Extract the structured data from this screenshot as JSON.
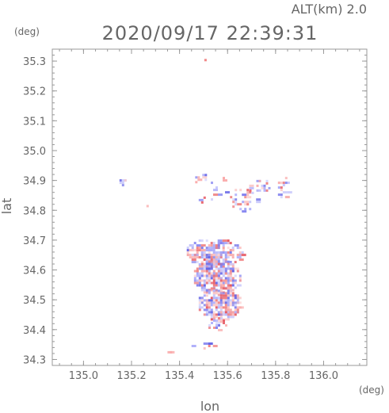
{
  "header": {
    "altitude_label": "ALT(km) 2.0",
    "datetime": "2020/09/17 22:39:31"
  },
  "chart_data": {
    "type": "heatmap",
    "title": "2020/09/17 22:39:31",
    "subtitle": "ALT(km) 2.0",
    "xlabel": "lon",
    "ylabel": "lat",
    "x_unit": "(deg)",
    "y_unit": "(deg)",
    "xlim": [
      134.87,
      136.18
    ],
    "ylim": [
      34.28,
      35.34
    ],
    "x_ticks": [
      "135.0",
      "135.2",
      "135.4",
      "135.6",
      "135.8",
      "136.0"
    ],
    "y_ticks": [
      "35.3",
      "35.2",
      "35.1",
      "35.0",
      "34.9",
      "34.8",
      "34.7",
      "34.6",
      "34.5",
      "34.4",
      "34.3"
    ],
    "grid": false,
    "colors": {
      "positive": "#f07070",
      "negative": "#7070f0",
      "axis": "#999999"
    },
    "echo_regions": [
      {
        "lon": 135.16,
        "lat": 34.9,
        "r_lon": 0.02,
        "r_lat": 0.012,
        "sign": "negative",
        "density": 0.8
      },
      {
        "lon": 135.26,
        "lat": 34.82,
        "r_lon": 0.008,
        "r_lat": 0.006,
        "sign": "positive",
        "density": 0.6
      },
      {
        "lon": 135.3,
        "lat": 34.76,
        "r_lon": 0.008,
        "r_lat": 0.006,
        "sign": "negative",
        "density": 0.6
      },
      {
        "lon": 135.5,
        "lat": 35.31,
        "r_lon": 0.006,
        "r_lat": 0.004,
        "sign": "positive",
        "density": 0.7
      },
      {
        "lon": 135.48,
        "lat": 34.91,
        "r_lon": 0.035,
        "r_lat": 0.02,
        "sign": "mixed",
        "density": 0.35
      },
      {
        "lon": 135.49,
        "lat": 34.84,
        "r_lon": 0.02,
        "r_lat": 0.03,
        "sign": "mixed",
        "density": 0.25
      },
      {
        "lon": 135.56,
        "lat": 34.87,
        "r_lon": 0.04,
        "r_lat": 0.05,
        "sign": "mixed",
        "density": 0.2
      },
      {
        "lon": 135.66,
        "lat": 34.84,
        "r_lon": 0.06,
        "r_lat": 0.04,
        "sign": "mixed",
        "density": 0.35
      },
      {
        "lon": 135.73,
        "lat": 34.88,
        "r_lon": 0.05,
        "r_lat": 0.03,
        "sign": "mixed",
        "density": 0.35
      },
      {
        "lon": 135.83,
        "lat": 34.88,
        "r_lon": 0.03,
        "r_lat": 0.04,
        "sign": "mixed",
        "density": 0.5
      },
      {
        "lon": 135.54,
        "lat": 34.66,
        "r_lon": 0.12,
        "r_lat": 0.05,
        "sign": "mixed",
        "density": 0.8
      },
      {
        "lon": 135.55,
        "lat": 34.58,
        "r_lon": 0.1,
        "r_lat": 0.06,
        "sign": "mixed",
        "density": 0.85
      },
      {
        "lon": 135.56,
        "lat": 34.49,
        "r_lon": 0.09,
        "r_lat": 0.06,
        "sign": "mixed",
        "density": 0.8
      },
      {
        "lon": 135.55,
        "lat": 34.42,
        "r_lon": 0.04,
        "r_lat": 0.03,
        "sign": "mixed",
        "density": 0.5
      },
      {
        "lon": 135.5,
        "lat": 34.35,
        "r_lon": 0.06,
        "r_lat": 0.015,
        "sign": "mixed",
        "density": 0.3
      },
      {
        "lon": 135.36,
        "lat": 34.33,
        "r_lon": 0.02,
        "r_lat": 0.006,
        "sign": "positive",
        "density": 0.8
      },
      {
        "lon": 135.43,
        "lat": 34.34,
        "r_lon": 0.02,
        "r_lat": 0.008,
        "sign": "negative",
        "density": 0.6
      }
    ]
  }
}
